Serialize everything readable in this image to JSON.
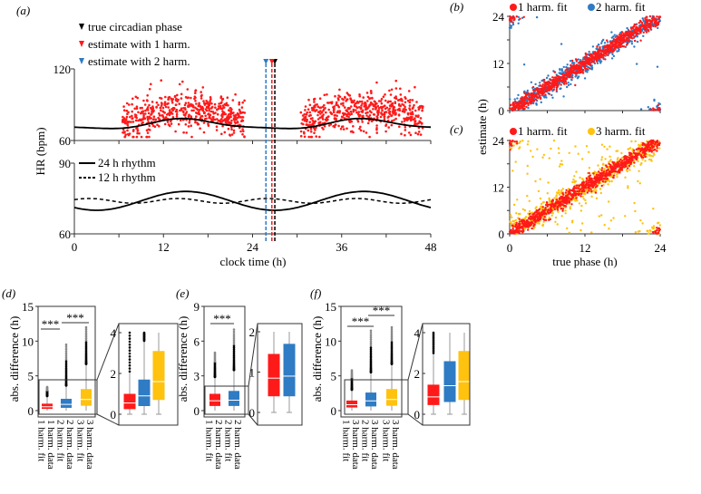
{
  "colors": {
    "red": "#ff1a1a",
    "blue": "#2f7bc4",
    "yellow": "#ffc20e",
    "black": "#000000",
    "gray": "#999999"
  },
  "chart_data": [
    {
      "panel": "(a)",
      "type": "scatter",
      "ylabel": "HR (bpm)",
      "xlabel": "clock time (h)",
      "xlim": [
        0,
        48
      ],
      "xticks": [
        "0",
        "12",
        "24",
        "36",
        "48"
      ],
      "top": {
        "ylim": [
          60,
          120
        ],
        "yticks": [
          "120",
          "60"
        ],
        "data_windows_h": [
          [
            6.5,
            23
          ],
          [
            30.5,
            47
          ]
        ],
        "data_range_bpm": [
          63,
          118
        ],
        "fit_curve": "sum of 24 h and 12 h rhythms"
      },
      "bottom": {
        "ylim": [
          60,
          90
        ],
        "yticks": [
          "90",
          "60"
        ],
        "series": [
          {
            "name": "24 h rhythm",
            "style": "solid",
            "mean": 74,
            "amplitude": 4,
            "period_h": 24,
            "peak_h": 15
          },
          {
            "name": "12 h rhythm",
            "style": "dashed",
            "mean": 74,
            "amplitude": 1,
            "period_h": 12,
            "peak_h": 2
          }
        ]
      },
      "markers": [
        {
          "name": "true circadian phase",
          "x": 27,
          "color": "#000000"
        },
        {
          "name": "estimate with 1 harm.",
          "x": 26.6,
          "color": "#ff1a1a"
        },
        {
          "name": "estimate with 2 harm.",
          "x": 25.8,
          "color": "#2f7bc4"
        }
      ]
    },
    {
      "panel": "(b)",
      "type": "scatter",
      "xlim": [
        0,
        24
      ],
      "ylim": [
        0,
        24
      ],
      "xticks": [
        "0",
        "12",
        "24"
      ],
      "yticks": [
        "0",
        "12",
        "24"
      ],
      "legend": [
        "1 harm. fit",
        "2 harm. fit"
      ],
      "legend_placement": "top"
    },
    {
      "panel": "(c)",
      "type": "scatter",
      "xlabel": "true phase (h)",
      "ylabel": "estimate (h)",
      "xlim": [
        0,
        24
      ],
      "ylim": [
        0,
        24
      ],
      "xticks": [
        "0",
        "12",
        "24"
      ],
      "yticks": [
        "0",
        "12",
        "24"
      ],
      "legend": [
        "1 harm. fit",
        "3 harm. fit"
      ],
      "legend_placement": "top"
    },
    {
      "panel": "(d)",
      "type": "box",
      "ylabel": "abs. difference (h)",
      "ylim": [
        0,
        15
      ],
      "yticks": [
        "0",
        "5",
        "10",
        "15"
      ],
      "inset": {
        "ylim": [
          0,
          4
        ],
        "yticks": [
          "0",
          "2",
          "4"
        ]
      },
      "categories": [
        [
          "1 harm. data",
          "1 harm. fit"
        ],
        [
          "2 harm. data",
          "2 harm. fit"
        ],
        [
          "3 harm. data",
          "3 harm. fit"
        ]
      ],
      "boxes": [
        {
          "color": "red",
          "q1": 0.25,
          "median": 0.55,
          "q3": 1.0,
          "whisker_low": 0,
          "whisker_high": 2.1,
          "outlier_max": 3.4
        },
        {
          "color": "blue",
          "q1": 0.4,
          "median": 0.9,
          "q3": 1.7,
          "whisker_low": 0,
          "whisker_high": 3.6,
          "outlier_max": 9.5
        },
        {
          "color": "yellow",
          "q1": 0.7,
          "median": 1.6,
          "q3": 3.1,
          "whisker_low": 0,
          "whisker_high": 6.7,
          "outlier_max": 12
        }
      ],
      "significance": [
        {
          "pair": [
            1,
            2
          ],
          "label": "***"
        },
        {
          "pair": [
            2,
            3
          ],
          "label": "***"
        }
      ]
    },
    {
      "panel": "(e)",
      "type": "box",
      "ylabel": "abs. difference (h)",
      "ylim": [
        0,
        9
      ],
      "yticks": [
        "0",
        "3",
        "6",
        "9"
      ],
      "inset": {
        "ylim": [
          0,
          2
        ],
        "yticks": [
          "0",
          "1",
          "2"
        ]
      },
      "categories": [
        [
          "2 harm. data",
          "1 harm. fit"
        ],
        [
          "2 harm. data",
          "2 harm. fit"
        ]
      ],
      "boxes": [
        {
          "color": "red",
          "q1": 0.4,
          "median": 0.85,
          "q3": 1.45,
          "whisker_low": 0,
          "whisker_high": 2.9,
          "outlier_max": 5
        },
        {
          "color": "blue",
          "q1": 0.4,
          "median": 0.9,
          "q3": 1.7,
          "whisker_low": 0,
          "whisker_high": 3.5,
          "outlier_max": 7
        }
      ],
      "significance": [
        {
          "pair": [
            1,
            2
          ],
          "label": "***"
        }
      ]
    },
    {
      "panel": "(f)",
      "type": "box",
      "ylabel": "abs. difference (h)",
      "ylim": [
        0,
        15
      ],
      "yticks": [
        "0",
        "5",
        "10",
        "15"
      ],
      "inset": {
        "ylim": [
          0,
          4
        ],
        "yticks": [
          "0",
          "2",
          "4"
        ]
      },
      "categories": [
        [
          "3 harm. data",
          "1 harm. fit"
        ],
        [
          "3 harm. data",
          "2 harm. fit"
        ],
        [
          "3 harm. data",
          "3 harm. fit"
        ]
      ],
      "boxes": [
        {
          "color": "red",
          "q1": 0.45,
          "median": 0.85,
          "q3": 1.45,
          "whisker_low": 0,
          "whisker_high": 3.0,
          "outlier_max": 5.8
        },
        {
          "color": "blue",
          "q1": 0.6,
          "median": 1.4,
          "q3": 2.6,
          "whisker_low": 0,
          "whisker_high": 5.5,
          "outlier_max": 11.5
        },
        {
          "color": "yellow",
          "q1": 0.7,
          "median": 1.6,
          "q3": 3.1,
          "whisker_low": 0,
          "whisker_high": 6.7,
          "outlier_max": 12
        }
      ],
      "significance": [
        {
          "pair": [
            1,
            2
          ],
          "label": "***"
        },
        {
          "pair": [
            2,
            3
          ],
          "label": "***"
        }
      ]
    }
  ]
}
